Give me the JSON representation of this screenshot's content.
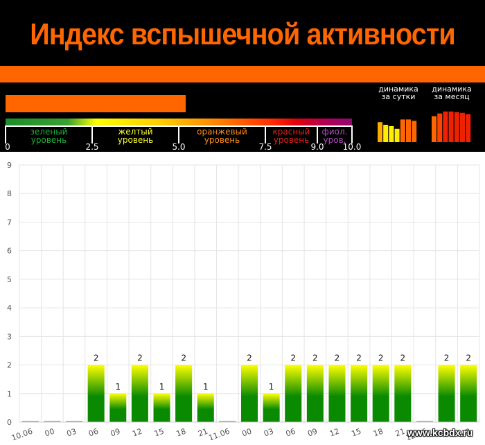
{
  "header": {
    "title": "Индекс вспышечной активности",
    "current_index": 5.2,
    "scale_ticks": [
      "0",
      "2.5",
      "5.0",
      "7.5",
      "9.0",
      "10.0"
    ],
    "zones": [
      {
        "line1": "зеленый",
        "line2": "уровень",
        "color": "#1db33b"
      },
      {
        "line1": "желтый",
        "line2": "уровень",
        "color": "#ffff33"
      },
      {
        "line1": "оранжевый",
        "line2": "уровень",
        "color": "#ff8c1a"
      },
      {
        "line1": "красный",
        "line2": "уровень",
        "color": "#e8201a"
      },
      {
        "line1": "фиол.",
        "line2": "уров.",
        "color": "#b44ac0"
      }
    ],
    "dynamics_day": {
      "line1": "динамика",
      "line2": "за сутки",
      "levels": [
        3,
        2.6,
        2.4,
        2.0,
        3.4,
        3.4,
        3.2
      ],
      "colors": [
        "#ffaa00",
        "#ffee00",
        "#ffee00",
        "#ffee00",
        "#ff6600",
        "#ff6600",
        "#ff6600"
      ]
    },
    "dynamics_month": {
      "line1": "динамика",
      "line2": "за месяц",
      "levels": [
        3.9,
        4.3,
        4.6,
        4.6,
        4.5,
        4.4,
        4.2
      ],
      "colors": [
        "#ff6600",
        "#ff4400",
        "#ee2200",
        "#ee2200",
        "#ee2200",
        "#ee2200",
        "#ee2200"
      ]
    }
  },
  "chart_data": {
    "type": "bar",
    "categories": [
      "10.06",
      "00",
      "03",
      "06",
      "09",
      "12",
      "15",
      "18",
      "21",
      "11.06",
      "00",
      "03",
      "06",
      "09",
      "12",
      "15",
      "18",
      "21",
      "12.06",
      "00",
      "03"
    ],
    "values": [
      0,
      0,
      0,
      2,
      1,
      2,
      1,
      2,
      1,
      0,
      2,
      1,
      2,
      2,
      2,
      2,
      2,
      2,
      0,
      2,
      2
    ],
    "data_labels": [
      "",
      "",
      "",
      "2",
      "1",
      "2",
      "1",
      "2",
      "1",
      "",
      "2",
      "1",
      "2",
      "2",
      "2",
      "2",
      "2",
      "2",
      "",
      "2",
      "2"
    ],
    "ylim": [
      0,
      9
    ],
    "yticks": [
      "0",
      "1",
      "2",
      "3",
      "4",
      "5",
      "6",
      "7",
      "8",
      "9"
    ],
    "grid": true,
    "bar_gradient": {
      "top": "#ffff00",
      "bottom": "#0a8a00"
    },
    "zero_bar_color": "#66aa55"
  },
  "watermark": "www.kcbdx.ru"
}
